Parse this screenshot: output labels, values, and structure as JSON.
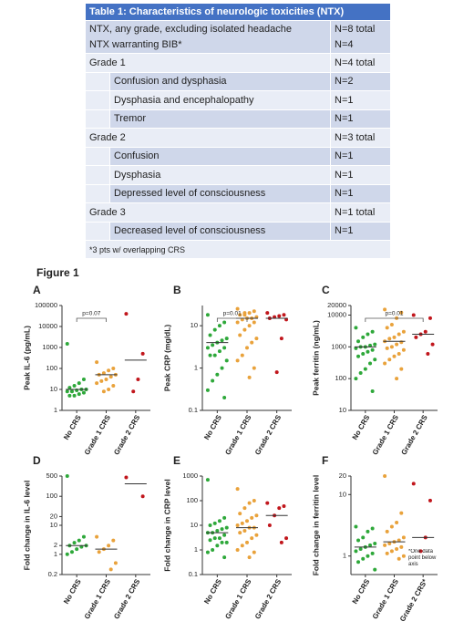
{
  "table": {
    "title": "Table 1: Characteristics of neurologic toxicities (NTX)",
    "rows": [
      {
        "cells": [
          "NTX, any grade, excluding isolated headache",
          "N=8 total"
        ]
      },
      {
        "cells": [
          "NTX warranting BIB*",
          "N=4"
        ]
      },
      {
        "cells": [
          "Grade 1",
          "N=4 total"
        ]
      },
      {
        "cells": [
          "Confusion and dysphasia",
          "N=2"
        ],
        "indent": true
      },
      {
        "cells": [
          "Dysphasia and encephalopathy",
          "N=1"
        ],
        "indent": true
      },
      {
        "cells": [
          "Tremor",
          "N=1"
        ],
        "indent": true
      },
      {
        "cells": [
          "Grade 2",
          "N=3 total"
        ]
      },
      {
        "cells": [
          "Confusion",
          "N=1"
        ],
        "indent": true
      },
      {
        "cells": [
          "Dysphasia",
          "N=1"
        ],
        "indent": true
      },
      {
        "cells": [
          "Depressed level of consciousness",
          "N=1"
        ],
        "indent": true
      },
      {
        "cells": [
          "Grade 3",
          "N=1 total"
        ]
      },
      {
        "cells": [
          "Decreased level of consciousness",
          "N=1"
        ],
        "indent": true
      }
    ],
    "footnote": "*3 pts w/ overlapping CRS"
  },
  "figure_title": "Figure 1",
  "chart_data": [
    {
      "type": "dot",
      "panel": "A",
      "ylabel": "Peak IL-6 (pg/mL)",
      "log_y": true,
      "categories": [
        "No CRS",
        "Grade 1 CRS",
        "Grade 2 CRS"
      ],
      "colors": [
        "#2ea83a",
        "#e9a23b",
        "#c1161c"
      ],
      "ylim": [
        1,
        100000
      ],
      "yticks": [
        1,
        10,
        100,
        1000,
        10000,
        100000
      ],
      "points": [
        [
          1500,
          30,
          20,
          15,
          12,
          10,
          10,
          9,
          8,
          8,
          7,
          6,
          5,
          5
        ],
        [
          200,
          100,
          80,
          60,
          50,
          50,
          40,
          30,
          25,
          20,
          15,
          10,
          8
        ],
        [
          40000,
          500,
          30,
          8
        ]
      ],
      "medians": [
        10,
        50,
        250
      ],
      "annotations": [
        {
          "text": "p=0.07",
          "between": [
            0,
            1
          ]
        }
      ]
    },
    {
      "type": "dot",
      "panel": "B",
      "ylabel": "Peak CRP (mg/dL)",
      "log_y": true,
      "categories": [
        "No CRS",
        "Grade 1 CRS",
        "Grade 2 CRS"
      ],
      "colors": [
        "#2ea83a",
        "#e9a23b",
        "#c1161c"
      ],
      "ylim": [
        0.1,
        30
      ],
      "yticks": [
        0.1,
        1,
        10
      ],
      "points": [
        [
          18,
          12,
          10,
          8,
          6,
          5,
          4.5,
          4,
          3.5,
          3,
          3,
          2.5,
          2,
          2,
          1.5,
          1,
          0.7,
          0.5,
          0.3,
          0.2
        ],
        [
          25,
          22,
          20,
          18,
          18,
          16,
          15,
          15,
          14,
          12,
          12,
          10,
          8,
          6,
          5,
          4,
          3,
          2,
          1.5,
          1,
          0.6,
          20
        ],
        [
          20,
          18,
          17,
          16,
          15,
          14,
          5,
          0.8
        ]
      ],
      "medians": [
        4,
        15,
        15
      ],
      "annotations": [
        {
          "text": "p=0.01",
          "between": [
            0,
            1
          ]
        }
      ]
    },
    {
      "type": "dot",
      "panel": "C",
      "ylabel": "Peak ferritin (ng/mL)",
      "log_y": true,
      "categories": [
        "No CRS",
        "Grade 1 CRS",
        "Grade 2 CRS"
      ],
      "colors": [
        "#2ea83a",
        "#e9a23b",
        "#c1161c"
      ],
      "ylim": [
        10,
        20000
      ],
      "yticks": [
        10,
        100,
        1000,
        10000,
        20000
      ],
      "points": [
        [
          4000,
          3000,
          2500,
          2000,
          1500,
          1200,
          1100,
          1000,
          1000,
          900,
          800,
          700,
          600,
          500,
          400,
          300,
          200,
          150,
          100,
          40
        ],
        [
          15000,
          12000,
          8000,
          5000,
          4000,
          3000,
          2500,
          2000,
          1800,
          1500,
          1400,
          1200,
          1000,
          900,
          800,
          600,
          500,
          400,
          300,
          200,
          100
        ],
        [
          10000,
          8000,
          3000,
          2500,
          2000,
          1200,
          600
        ]
      ],
      "medians": [
        1000,
        1500,
        2500
      ],
      "annotations": [
        {
          "text": "p=0.01",
          "between": [
            0,
            2
          ]
        }
      ]
    },
    {
      "type": "dot",
      "panel": "D",
      "ylabel": "Fold change in IL-6 level",
      "log_y": true,
      "categories": [
        "No CRS",
        "Grade 1 CRS",
        "Grade 2 CRS"
      ],
      "colors": [
        "#2ea83a",
        "#e9a23b",
        "#c1161c"
      ],
      "ylim": [
        0.2,
        500
      ],
      "yticks": [
        0.2,
        1,
        2,
        10,
        20,
        100,
        500
      ],
      "points": [
        [
          500,
          4,
          3,
          2.5,
          2,
          2,
          1.8,
          1.5,
          1.2,
          1
        ],
        [
          4,
          3,
          2,
          1.5,
          1.2,
          0.5,
          0.3
        ],
        [
          450,
          100
        ]
      ],
      "medians": [
        2,
        1.5,
        270
      ]
    },
    {
      "type": "dot",
      "panel": "E",
      "ylabel": "Fold change in CRP level",
      "log_y": true,
      "categories": [
        "No CRS",
        "Grade 1 CRS",
        "Grade 2 CRS"
      ],
      "colors": [
        "#2ea83a",
        "#e9a23b",
        "#c1161c"
      ],
      "ylim": [
        0.1,
        1000
      ],
      "yticks": [
        0.1,
        1,
        10,
        100,
        1000
      ],
      "points": [
        [
          700,
          20,
          15,
          12,
          10,
          8,
          7,
          6,
          5,
          5,
          4,
          3,
          3,
          2.5,
          2,
          2,
          1.5,
          1,
          0.8,
          0.5
        ],
        [
          300,
          100,
          80,
          50,
          30,
          25,
          20,
          15,
          12,
          10,
          8,
          8,
          6,
          5,
          4,
          3,
          2,
          1.5,
          1,
          0.8,
          0.5
        ],
        [
          80,
          60,
          50,
          25,
          10,
          3,
          2
        ]
      ],
      "medians": [
        5,
        8,
        25
      ]
    },
    {
      "type": "dot",
      "panel": "F",
      "ylabel": "Fold change in ferritin level",
      "log_y": true,
      "categories": [
        "No CRS",
        "Grade 1 CRS",
        "Grade 2 CRS*"
      ],
      "colors": [
        "#2ea83a",
        "#e9a23b",
        "#c1161c"
      ],
      "ylim": [
        0.5,
        20
      ],
      "yticks": [
        1,
        10,
        20
      ],
      "points": [
        [
          3,
          2.8,
          2.5,
          2,
          1.8,
          1.6,
          1.5,
          1.4,
          1.3,
          1.2,
          1.1,
          1,
          0.9,
          0.8,
          0.6
        ],
        [
          20,
          5,
          3.5,
          3,
          2.5,
          2,
          1.8,
          1.7,
          1.6,
          1.5,
          1.4,
          1.3,
          1.2,
          1.1,
          1,
          0.9
        ],
        [
          15,
          8,
          2,
          1.2
        ]
      ],
      "medians": [
        1.4,
        1.7,
        2
      ],
      "note": "*One data point below axis"
    }
  ]
}
